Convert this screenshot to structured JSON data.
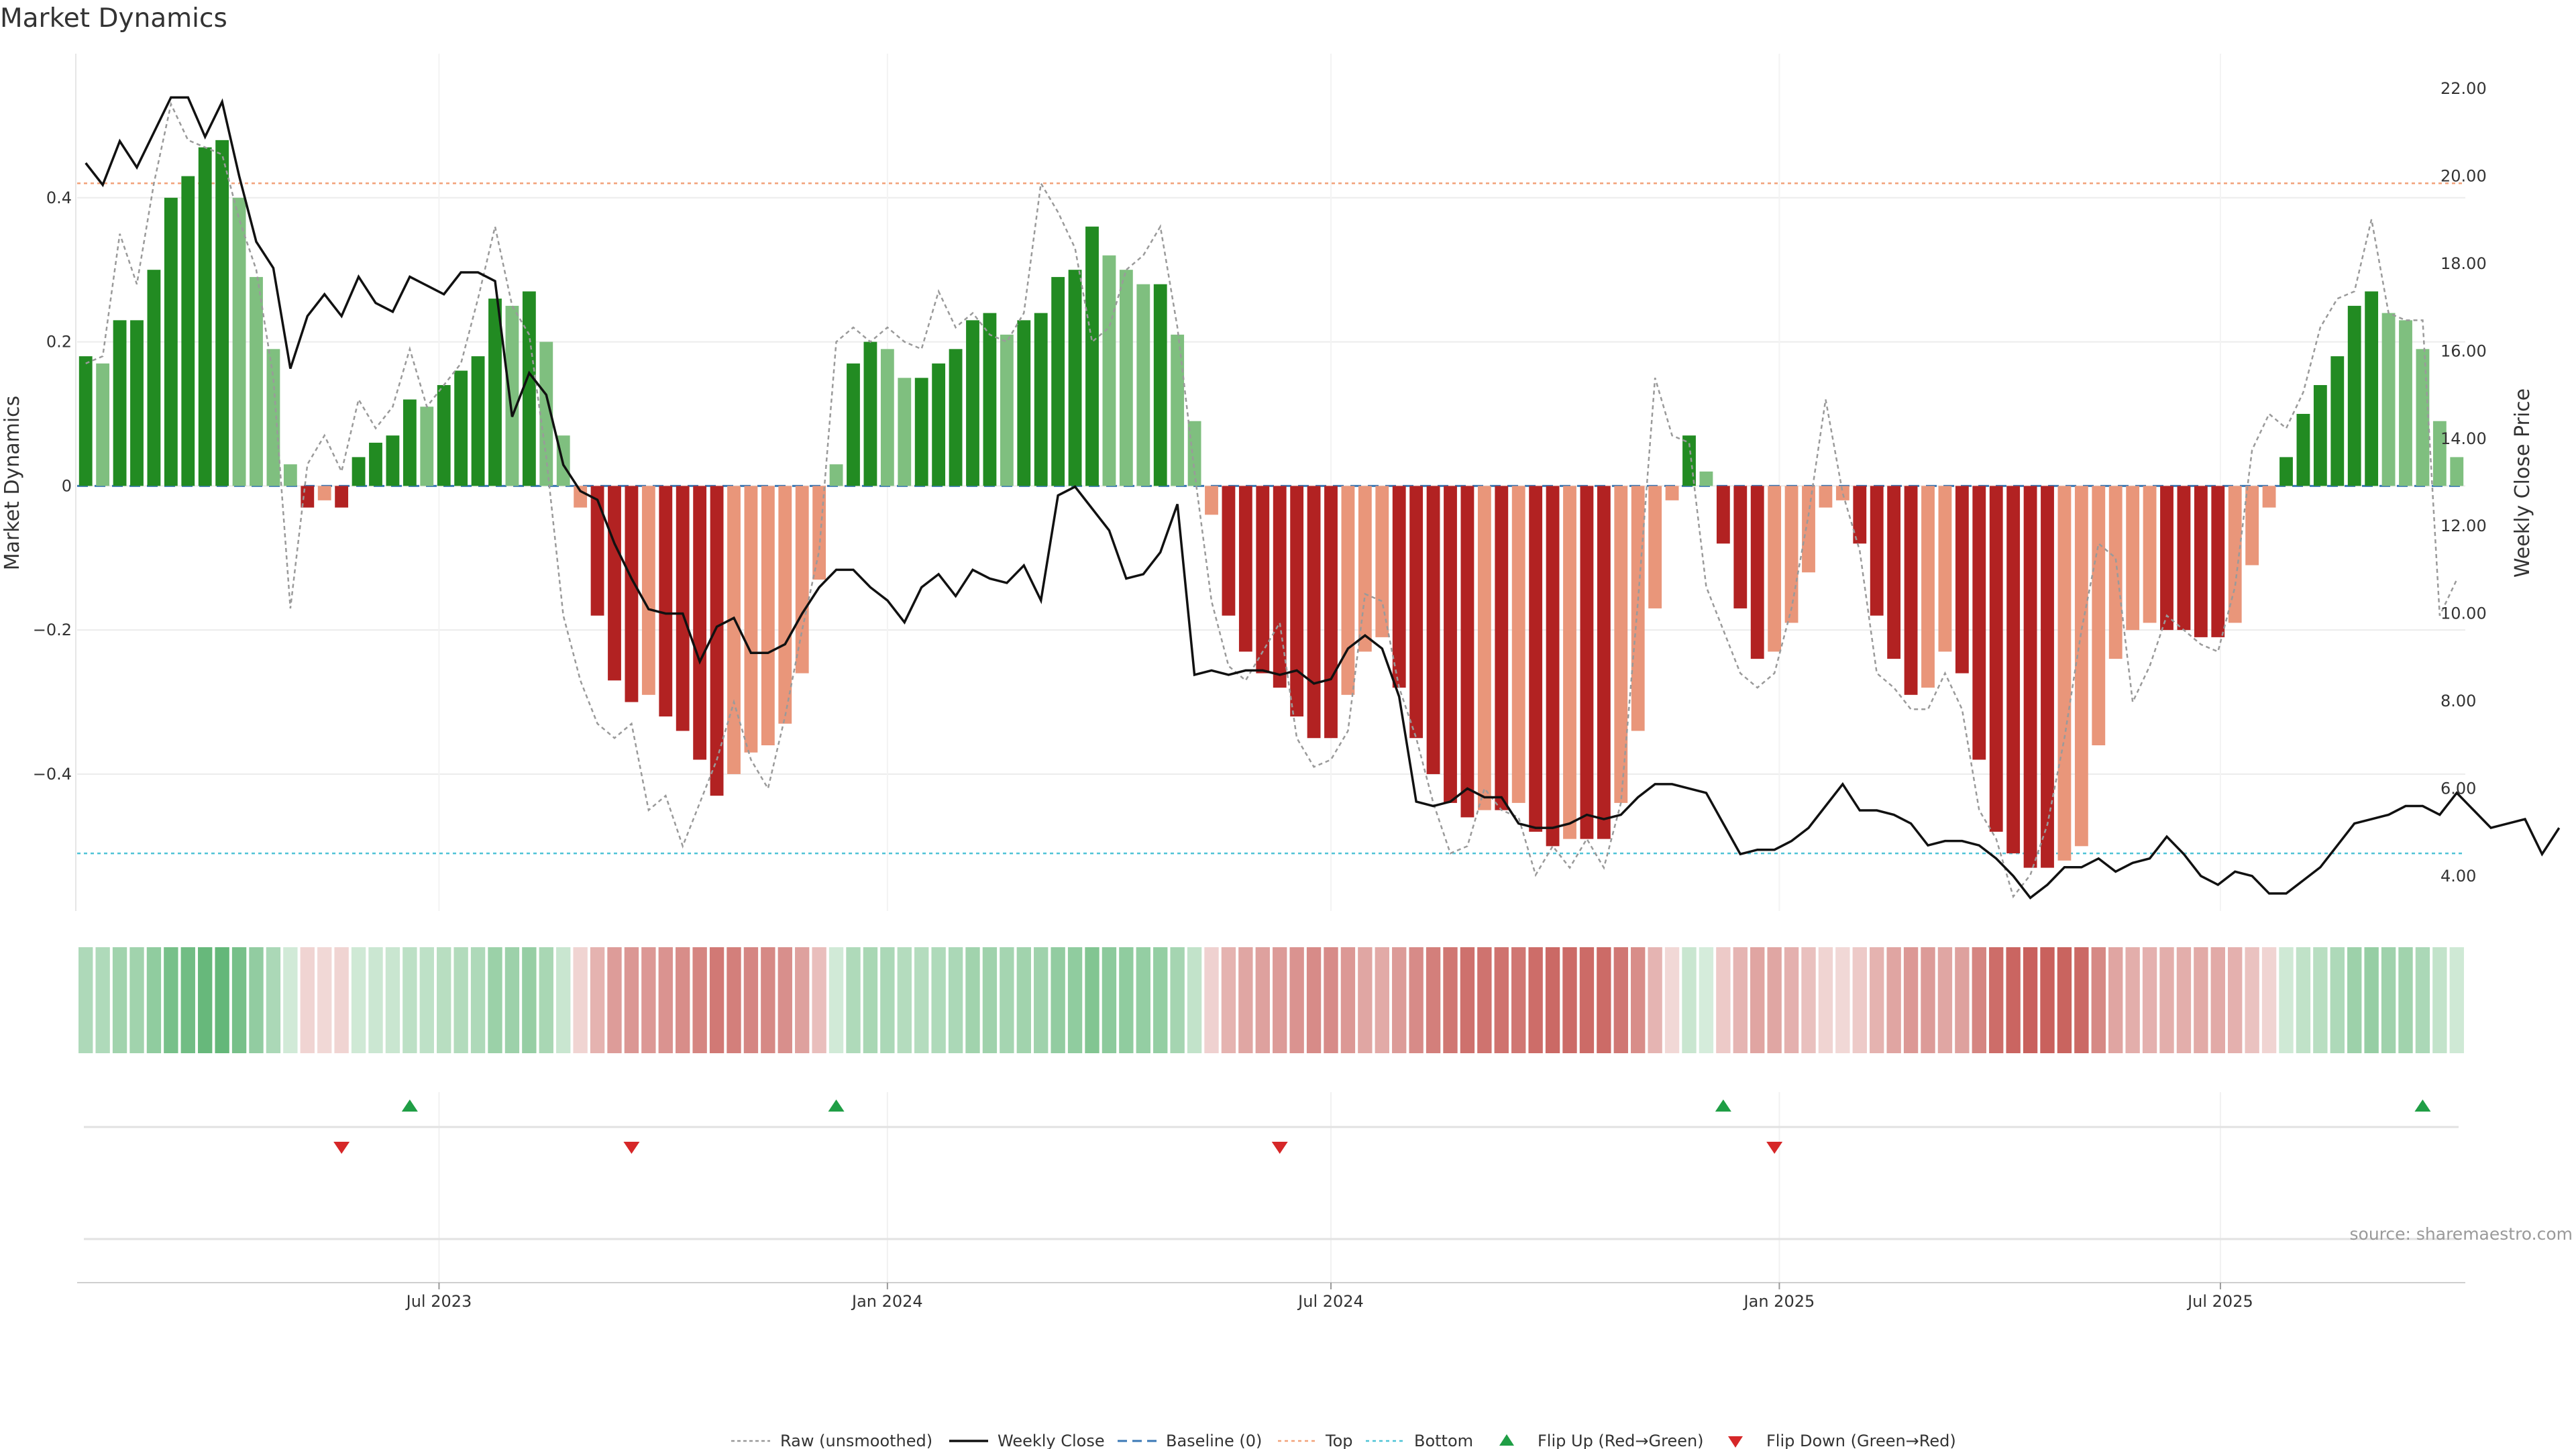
{
  "chart_data": {
    "type": "bar",
    "title": "Market Dynamics",
    "ylabel_left": "Market Dynamics",
    "ylabel_right": "Weekly Close Price",
    "ylim_left": [
      -0.59,
      0.6
    ],
    "ylim_right": [
      3.2,
      22.8
    ],
    "yticks_left": [
      0.4,
      0.2,
      0,
      -0.2,
      -0.4
    ],
    "yticks_left_labels": [
      "0.4",
      "0.2",
      "0",
      "−0.2",
      "−0.4"
    ],
    "yticks_right": [
      22,
      20,
      18,
      16,
      14,
      12,
      10,
      8,
      6,
      4
    ],
    "yticks_right_labels": [
      "22.00",
      "20.00",
      "18.00",
      "16.00",
      "14.00",
      "12.00",
      "10.00",
      "8.00",
      "6.00",
      "4.00"
    ],
    "x_start": "2023-02-06",
    "x_step_days": 7,
    "xticks": [
      {
        "date": "2023-07-01",
        "label": "Jul 2023"
      },
      {
        "date": "2024-01-01",
        "label": "Jan 2024"
      },
      {
        "date": "2024-07-01",
        "label": "Jul 2024"
      },
      {
        "date": "2025-01-01",
        "label": "Jan 2025"
      },
      {
        "date": "2025-07-01",
        "label": "Jul 2025"
      }
    ],
    "top_line": 0.42,
    "bottom_line": -0.51,
    "baseline": 0,
    "momentum": [
      0.18,
      0.17,
      0.23,
      0.23,
      0.3,
      0.4,
      0.43,
      0.47,
      0.48,
      0.4,
      0.29,
      0.19,
      0.03,
      -0.03,
      -0.02,
      -0.03,
      0.04,
      0.06,
      0.07,
      0.12,
      0.11,
      0.14,
      0.16,
      0.18,
      0.26,
      0.25,
      0.27,
      0.2,
      0.07,
      -0.03,
      -0.18,
      -0.27,
      -0.3,
      -0.29,
      -0.32,
      -0.34,
      -0.38,
      -0.43,
      -0.4,
      -0.37,
      -0.36,
      -0.33,
      -0.26,
      -0.13,
      0.03,
      0.17,
      0.2,
      0.19,
      0.15,
      0.15,
      0.17,
      0.19,
      0.23,
      0.24,
      0.21,
      0.23,
      0.24,
      0.29,
      0.3,
      0.36,
      0.32,
      0.3,
      0.28,
      0.28,
      0.21,
      0.09,
      -0.04,
      -0.18,
      -0.23,
      -0.26,
      -0.28,
      -0.32,
      -0.35,
      -0.35,
      -0.29,
      -0.23,
      -0.21,
      -0.28,
      -0.35,
      -0.4,
      -0.44,
      -0.46,
      -0.45,
      -0.45,
      -0.44,
      -0.48,
      -0.5,
      -0.49,
      -0.49,
      -0.49,
      -0.44,
      -0.34,
      -0.17,
      -0.02,
      0.07,
      0.02,
      -0.08,
      -0.17,
      -0.24,
      -0.23,
      -0.19,
      -0.12,
      -0.03,
      -0.02,
      -0.08,
      -0.18,
      -0.24,
      -0.29,
      -0.28,
      -0.23,
      -0.26,
      -0.38,
      -0.48,
      -0.51,
      -0.53,
      -0.53,
      -0.52,
      -0.5,
      -0.36,
      -0.24,
      -0.2,
      -0.19,
      -0.2,
      -0.2,
      -0.21,
      -0.21,
      -0.19,
      -0.11,
      -0.03,
      0.04,
      0.1,
      0.14,
      0.18,
      0.25,
      0.27,
      0.24,
      0.23,
      0.19,
      0.09,
      0.04
    ],
    "raw": [
      0.17,
      0.18,
      0.35,
      0.28,
      0.42,
      0.53,
      0.48,
      0.47,
      0.46,
      0.37,
      0.3,
      0.15,
      -0.17,
      0.03,
      0.07,
      0.02,
      0.12,
      0.08,
      0.11,
      0.19,
      0.11,
      0.14,
      0.17,
      0.26,
      0.36,
      0.25,
      0.21,
      0.04,
      -0.18,
      -0.27,
      -0.33,
      -0.35,
      -0.33,
      -0.45,
      -0.43,
      -0.5,
      -0.44,
      -0.38,
      -0.3,
      -0.38,
      -0.42,
      -0.32,
      -0.2,
      -0.09,
      0.2,
      0.22,
      0.2,
      0.22,
      0.2,
      0.19,
      0.27,
      0.22,
      0.24,
      0.21,
      0.2,
      0.24,
      0.42,
      0.38,
      0.33,
      0.2,
      0.22,
      0.3,
      0.32,
      0.36,
      0.22,
      0.02,
      -0.16,
      -0.25,
      -0.27,
      -0.23,
      -0.19,
      -0.35,
      -0.39,
      -0.38,
      -0.34,
      -0.15,
      -0.16,
      -0.28,
      -0.35,
      -0.44,
      -0.51,
      -0.5,
      -0.42,
      -0.45,
      -0.46,
      -0.54,
      -0.5,
      -0.53,
      -0.49,
      -0.53,
      -0.44,
      -0.16,
      0.15,
      0.07,
      0.06,
      -0.14,
      -0.2,
      -0.26,
      -0.28,
      -0.26,
      -0.17,
      -0.04,
      0.12,
      -0.01,
      -0.09,
      -0.26,
      -0.28,
      -0.31,
      -0.31,
      -0.26,
      -0.31,
      -0.45,
      -0.49,
      -0.57,
      -0.54,
      -0.47,
      -0.35,
      -0.2,
      -0.08,
      -0.1,
      -0.3,
      -0.25,
      -0.18,
      -0.2,
      -0.22,
      -0.23,
      -0.14,
      0.05,
      0.1,
      0.08,
      0.13,
      0.22,
      0.26,
      0.27,
      0.37,
      0.24,
      0.23,
      0.23,
      -0.18,
      -0.13
    ],
    "close": [
      20.3,
      19.8,
      20.8,
      20.2,
      21.0,
      21.8,
      21.8,
      20.9,
      21.7,
      20.0,
      18.5,
      17.9,
      15.6,
      16.8,
      17.3,
      16.8,
      17.7,
      17.1,
      16.9,
      17.7,
      17.5,
      17.3,
      17.8,
      17.8,
      17.6,
      14.5,
      15.5,
      15.0,
      13.4,
      12.8,
      12.6,
      11.6,
      10.8,
      10.1,
      10.0,
      10.0,
      8.9,
      9.7,
      9.9,
      9.1,
      9.1,
      9.3,
      10.0,
      10.6,
      11.0,
      11.0,
      10.6,
      10.3,
      9.8,
      10.6,
      10.9,
      10.4,
      11.0,
      10.8,
      10.7,
      11.1,
      10.3,
      12.7,
      12.9,
      12.4,
      11.9,
      10.8,
      10.9,
      11.4,
      12.5,
      8.6,
      8.7,
      8.6,
      8.7,
      8.7,
      8.6,
      8.7,
      8.4,
      8.5,
      9.2,
      9.5,
      9.2,
      8.1,
      5.7,
      5.6,
      5.7,
      6.0,
      5.8,
      5.8,
      5.2,
      5.1,
      5.1,
      5.2,
      5.4,
      5.3,
      5.4,
      5.8,
      6.1,
      6.1,
      6.0,
      5.9,
      5.2,
      4.5,
      4.6,
      4.6,
      4.8,
      5.1,
      5.6,
      6.1,
      5.5,
      5.5,
      5.4,
      5.2,
      4.7,
      4.8,
      4.8,
      4.7,
      4.4,
      4.0,
      3.5,
      3.8,
      4.2,
      4.2,
      4.4,
      4.1,
      4.3,
      4.4,
      4.9,
      4.5,
      4.0,
      3.8,
      4.1,
      4.0,
      3.6,
      3.6,
      3.9,
      4.2,
      4.7,
      5.2,
      5.3,
      5.4,
      5.6,
      5.6,
      5.4,
      5.9,
      5.5,
      5.1,
      5.2,
      5.3,
      4.5,
      5.1
    ],
    "flip_up": [
      "2023-06-19",
      "2023-12-11",
      "2024-12-09",
      "2025-09-22"
    ],
    "flip_down": [
      "2023-05-22",
      "2023-09-18",
      "2024-06-10",
      "2024-12-30"
    ],
    "colors": {
      "pos_strong": "#228b22",
      "pos_weak": "#7fbf7f",
      "neg_strong": "#b22222",
      "neg_weak": "#e9967a",
      "raw_line": "#9a9a9a",
      "close_line": "#111111",
      "baseline": "#3a78b5",
      "top": "#f2a27a",
      "bottom": "#4fc3d6",
      "flip_up": "#1f9e45",
      "flip_down": "#d62728",
      "heat_green": "#2e9e4a",
      "heat_red": "#bb3a34"
    },
    "legend": {
      "raw": "Raw (unsmoothed)",
      "close": "Weekly Close",
      "baseline": "Baseline (0)",
      "top": "Top",
      "bottom": "Bottom",
      "flip_up": "Flip Up (Red→Green)",
      "flip_down": "Flip Down (Green→Red)"
    },
    "source": "source: sharemaestro.com"
  }
}
